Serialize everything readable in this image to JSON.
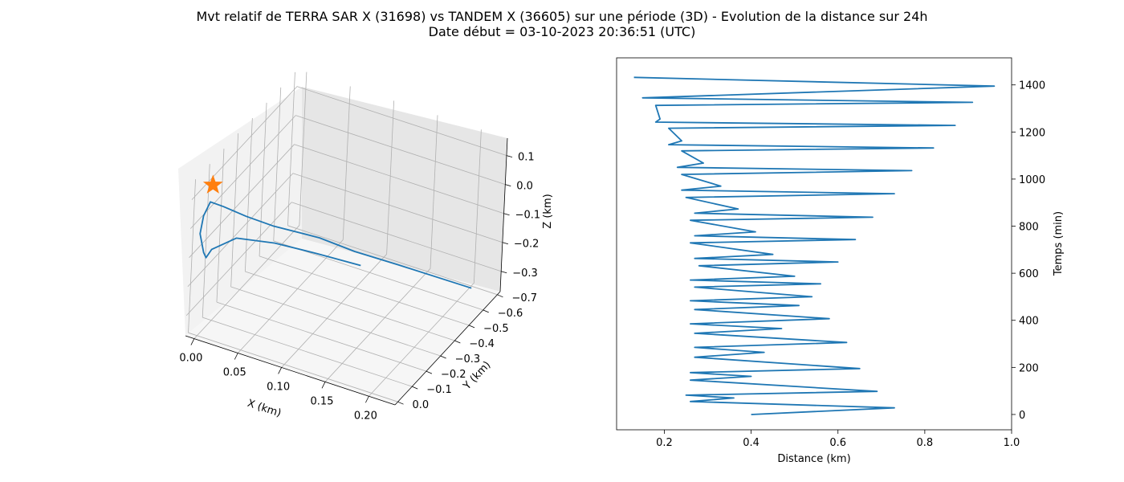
{
  "figure": {
    "title_line1": "Mvt relatif de TERRA SAR X (31698) vs TANDEM X (36605) sur une période (3D) - Evolution de la distance sur 24h",
    "title_line2": "Date début = 03-10-2023 20:36:51 (UTC)"
  },
  "chart_data": [
    {
      "type": "line3d",
      "xlabel": "X (km)",
      "ylabel": "Y (km)",
      "zlabel": "Z (km)",
      "xticks": [
        "0.00",
        "0.05",
        "0.10",
        "0.15",
        "0.20"
      ],
      "yticks": [
        "0.0",
        "−0.1",
        "−0.2",
        "−0.3",
        "−0.4",
        "−0.5",
        "−0.6",
        "−0.7"
      ],
      "zticks": [
        "0.1",
        "0.0",
        "−0.1",
        "−0.2",
        "−0.3"
      ],
      "xlim": [
        -0.01,
        0.23
      ],
      "ylim": [
        -0.72,
        0.02
      ],
      "zlim": [
        -0.37,
        0.16
      ],
      "grid": true,
      "series": [
        {
          "color": "#1f77b4",
          "points": [
            [
              0.202,
              -0.69,
              -0.37
            ],
            [
              0.15,
              -0.48,
              -0.23
            ],
            [
              0.12,
              -0.35,
              -0.145
            ],
            [
              0.095,
              -0.25,
              -0.07
            ],
            [
              0.06,
              -0.13,
              0.0
            ],
            [
              0.04,
              -0.06,
              0.05
            ],
            [
              0.02,
              -0.02,
              0.085
            ],
            [
              0.008,
              0.0,
              0.1
            ],
            [
              0.001,
              0.0,
              0.045
            ],
            [
              -0.002,
              0.0,
              -0.02
            ],
            [
              0.003,
              0.0,
              -0.08
            ],
            [
              0.006,
              0.0,
              -0.095
            ],
            [
              0.012,
              0.0,
              -0.06
            ],
            [
              0.03,
              -0.06,
              -0.035
            ],
            [
              0.06,
              -0.15,
              -0.07
            ],
            [
              0.09,
              -0.27,
              -0.14
            ],
            [
              0.12,
              -0.4,
              -0.22
            ]
          ]
        }
      ],
      "marker": {
        "symbol": "star",
        "color": "#ff7f0e",
        "x": 0.01,
        "y": 0.0,
        "z": 0.16
      }
    },
    {
      "type": "line",
      "xlabel": "Distance (km)",
      "ylabel": "Temps (min)",
      "xticks": [
        "0.2",
        "0.4",
        "0.6",
        "0.8",
        "1.0"
      ],
      "yticks": [
        "0",
        "200",
        "400",
        "600",
        "800",
        "1000",
        "1200",
        "1400"
      ],
      "xlim": [
        0.09,
        1.0
      ],
      "ylim": [
        -65,
        1515
      ],
      "yaxis_side": "right",
      "series": [
        {
          "color": "#1f77b4",
          "t": [
            0,
            28,
            55,
            70,
            82,
            98,
            146,
            162,
            178,
            195,
            243,
            264,
            285,
            306,
            345,
            365,
            385,
            407,
            446,
            463,
            483,
            500,
            541,
            555,
            571,
            587,
            632,
            648,
            663,
            680,
            729,
            743,
            759,
            776,
            825,
            838,
            855,
            873,
            922,
            938,
            953,
            970,
            1020,
            1036,
            1050,
            1068,
            1120,
            1132,
            1146,
            1162,
            1216,
            1228,
            1242,
            1255,
            1313,
            1326,
            1345,
            1395,
            1432
          ],
          "d": [
            0.4,
            0.73,
            0.26,
            0.36,
            0.25,
            0.69,
            0.26,
            0.4,
            0.26,
            0.65,
            0.27,
            0.43,
            0.27,
            0.62,
            0.27,
            0.47,
            0.26,
            0.58,
            0.27,
            0.51,
            0.26,
            0.54,
            0.27,
            0.56,
            0.26,
            0.5,
            0.28,
            0.6,
            0.27,
            0.45,
            0.26,
            0.64,
            0.27,
            0.41,
            0.26,
            0.68,
            0.27,
            0.37,
            0.25,
            0.73,
            0.24,
            0.33,
            0.24,
            0.77,
            0.23,
            0.29,
            0.24,
            0.82,
            0.21,
            0.24,
            0.21,
            0.87,
            0.18,
            0.19,
            0.18,
            0.91,
            0.15,
            0.96,
            0.13
          ]
        }
      ]
    }
  ]
}
